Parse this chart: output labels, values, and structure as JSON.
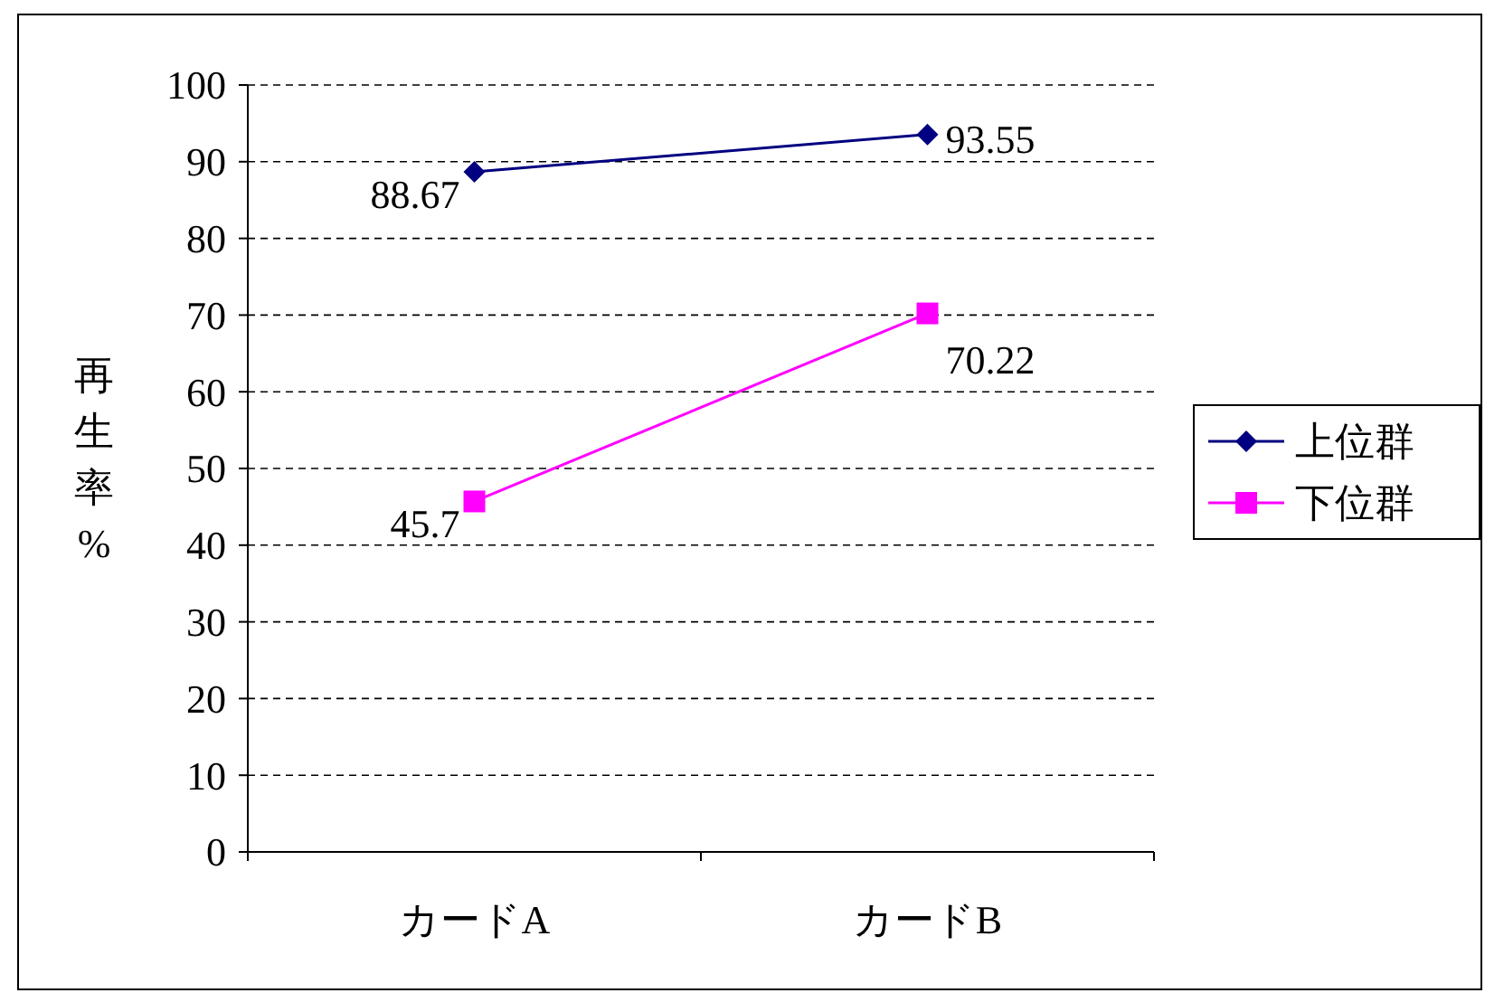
{
  "chart_data": {
    "type": "line",
    "ylabel": "再生率%",
    "categories": [
      "カードA",
      "カードB"
    ],
    "series": [
      {
        "name": "上位群",
        "color": "#000080",
        "marker": "diamond",
        "values": [
          88.67,
          93.55
        ]
      },
      {
        "name": "下位群",
        "color": "#ff00ff",
        "marker": "square",
        "values": [
          45.7,
          70.22
        ]
      }
    ],
    "ylim": [
      0,
      100
    ],
    "yticks": [
      0,
      10,
      20,
      30,
      40,
      50,
      60,
      70,
      80,
      90,
      100
    ],
    "grid": "y",
    "legend": "right",
    "data_labels": true,
    "line_style": "solid"
  }
}
